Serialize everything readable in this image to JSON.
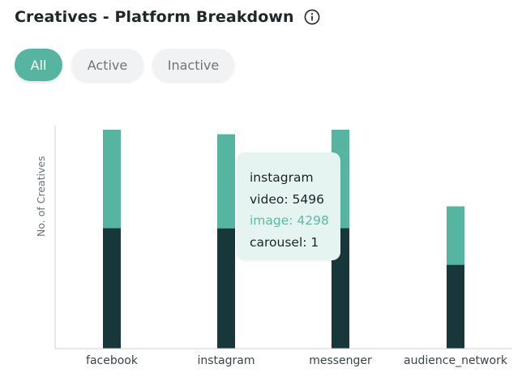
{
  "header": {
    "title": "Creatives - Platform Breakdown",
    "info_icon": "info-circle-icon"
  },
  "filters": [
    {
      "label": "All",
      "selected": true
    },
    {
      "label": "Active",
      "selected": false
    },
    {
      "label": "Inactive",
      "selected": false
    }
  ],
  "colors": {
    "accent": "#56b5a1",
    "bar_dark": "#18373a",
    "bar_light": "#56b5a1",
    "pill_inactive_bg": "#f1f2f3"
  },
  "tooltip": {
    "title": "instagram",
    "rows": [
      {
        "label": "video",
        "value": 5496,
        "text": "video: 5496",
        "highlighted": false
      },
      {
        "label": "image",
        "value": 4298,
        "text": "image: 4298",
        "highlighted": true
      },
      {
        "label": "carousel",
        "value": 1,
        "text": "carousel: 1",
        "highlighted": false
      }
    ]
  },
  "chart_data": {
    "type": "bar",
    "stacked": true,
    "title": "",
    "xlabel": "",
    "ylabel": "No. of Creatives",
    "categories": [
      "facebook",
      "instagram",
      "messenger",
      "audience_network"
    ],
    "ylim": [
      0,
      10000
    ],
    "grid": false,
    "series": [
      {
        "name": "video",
        "color": "#18373a",
        "values": [
          5500,
          5496,
          5500,
          3830
        ]
      },
      {
        "name": "image",
        "color": "#56b5a1",
        "values": [
          4500,
          4298,
          4500,
          2670
        ]
      },
      {
        "name": "carousel",
        "color": "#56b5a1",
        "values": [
          0,
          1,
          0,
          0
        ]
      }
    ]
  }
}
